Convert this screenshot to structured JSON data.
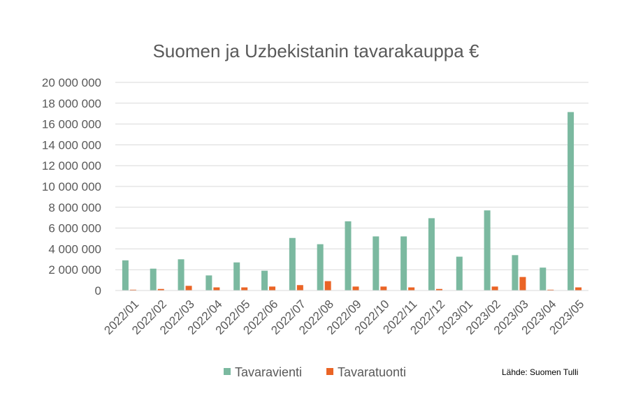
{
  "chart_data": {
    "type": "bar",
    "title": "Suomen ja Uzbekistanin tavarakauppa €",
    "categories": [
      "2022/01",
      "2022/02",
      "2022/03",
      "2022/04",
      "2022/05",
      "2022/06",
      "2022/07",
      "2022/08",
      "2022/09",
      "2022/10",
      "2022/11",
      "2022/12",
      "2023/01",
      "2023/02",
      "2023/03",
      "2023/04",
      "2023/05"
    ],
    "series": [
      {
        "name": "Tavaravienti",
        "color": "#7bb9a0",
        "values": [
          2900000,
          2100000,
          3000000,
          1450000,
          2700000,
          1900000,
          5050000,
          4450000,
          6650000,
          5200000,
          5200000,
          6950000,
          3250000,
          7700000,
          3400000,
          2200000,
          17150000
        ]
      },
      {
        "name": "Tavaratuonti",
        "color": "#ea6425",
        "values": [
          80000,
          150000,
          450000,
          300000,
          300000,
          380000,
          520000,
          900000,
          380000,
          380000,
          300000,
          150000,
          0,
          380000,
          1300000,
          80000,
          300000
        ]
      }
    ],
    "ylim": [
      0,
      20000000
    ],
    "yticks": [
      0,
      2000000,
      4000000,
      6000000,
      8000000,
      10000000,
      12000000,
      14000000,
      16000000,
      18000000,
      20000000
    ],
    "ytick_labels": [
      "0",
      "2 000 000",
      "4 000 000",
      "6 000 000",
      "8 000 000",
      "10 000 000",
      "12 000 000",
      "14 000 000",
      "16 000 000",
      "18 000 000",
      "20 000 000"
    ],
    "xlabel": "",
    "ylabel": "",
    "grid": true,
    "legend": "bottom",
    "source": "Lähde: Suomen Tulli"
  }
}
